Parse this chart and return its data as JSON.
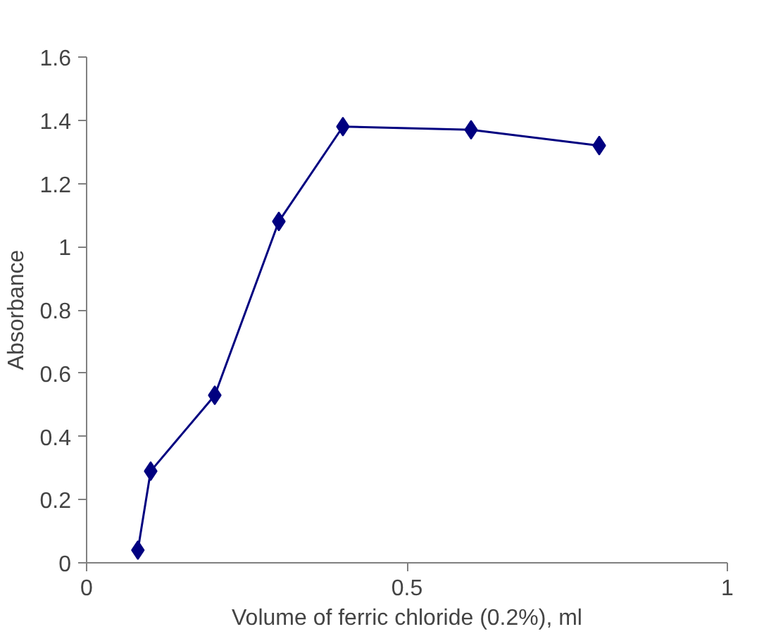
{
  "chart_data": {
    "type": "line",
    "xlabel": "Volume of ferric chloride (0.2%), ml",
    "ylabel": "Absorbance",
    "series": [
      {
        "color": "#000080",
        "x": [
          0.08,
          0.1,
          0.2,
          0.3,
          0.4,
          0.6,
          0.8
        ],
        "values": [
          0.04,
          0.29,
          0.53,
          1.08,
          1.38,
          1.37,
          1.32
        ]
      }
    ],
    "xlim": [
      0,
      1
    ],
    "xticks": [
      0,
      0.5,
      1
    ],
    "ylim": [
      0,
      1.6
    ],
    "yticks": [
      0,
      0.2,
      0.4,
      0.6,
      0.8,
      1,
      1.2,
      1.4,
      1.6
    ],
    "marker": "diamond",
    "line_style": "solid"
  }
}
